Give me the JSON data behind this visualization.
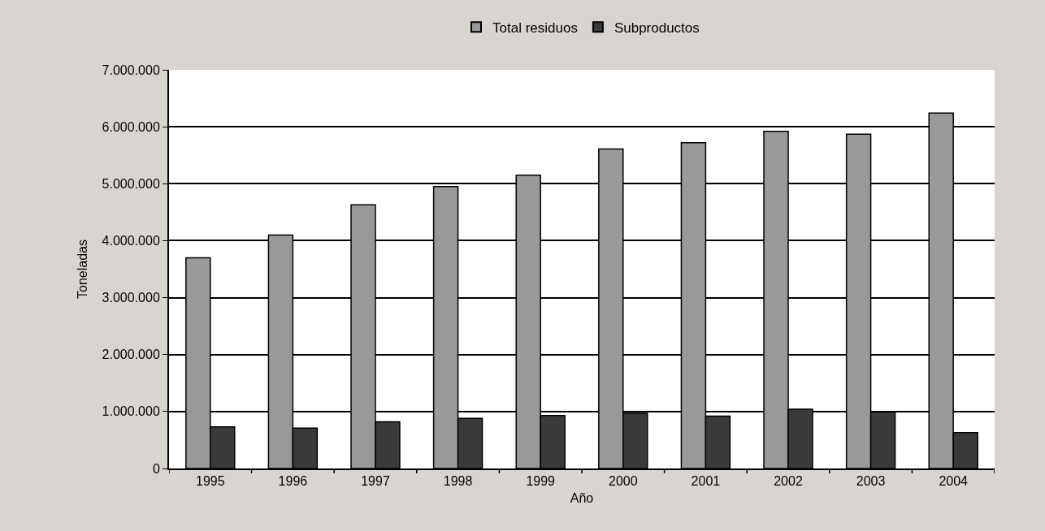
{
  "chart_data": {
    "type": "bar",
    "xlabel": "Año",
    "ylabel": "Toneladas",
    "categories": [
      "1995",
      "1996",
      "1997",
      "1998",
      "1999",
      "2000",
      "2001",
      "2002",
      "2003",
      "2004"
    ],
    "series": [
      {
        "name": "Total residuos",
        "color": "#999999",
        "values": [
          3700000,
          4100000,
          4630000,
          4950000,
          5150000,
          5610000,
          5720000,
          5920000,
          5870000,
          6240000
        ]
      },
      {
        "name": "Subproductos",
        "color": "#3a3a3a",
        "values": [
          730000,
          710000,
          820000,
          880000,
          930000,
          970000,
          920000,
          1040000,
          990000,
          630000
        ]
      }
    ],
    "ylim": [
      0,
      7000000
    ],
    "yticks": [
      0,
      {
        "value": 1000000,
        "label": "1.000.000"
      },
      {
        "value": 2000000,
        "label": "2.000.000"
      },
      {
        "value": 3000000,
        "label": "3.000.000"
      },
      {
        "value": 4000000,
        "label": "4.000.000"
      },
      {
        "value": 5000000,
        "label": "5.000.000"
      },
      {
        "value": 6000000,
        "label": "6.000.000"
      },
      {
        "value": 7000000,
        "label": "7.000.000"
      }
    ],
    "grid": "y",
    "legend": "top"
  }
}
